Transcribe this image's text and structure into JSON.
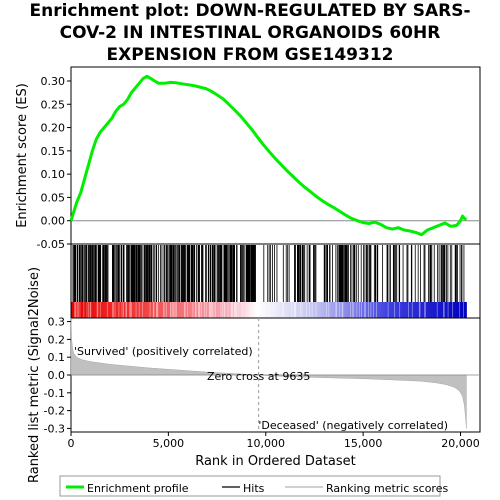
{
  "title_lines": [
    "Enrichment plot: DOWN-REGULATED BY SARS-",
    "COV-2 IN INTESTINAL ORGANOIDS 60HR",
    "EXPENSION FROM GSE149312"
  ],
  "colors": {
    "es_line": "#00ee00",
    "hits": "#000000",
    "metric_fill": "#c0c0c0",
    "positive_label": "#cc0000",
    "negative_label": "#0000cc",
    "zero_line": "#999999"
  },
  "chart_data": [
    {
      "type": "line",
      "name": "enrichment-profile",
      "ylabel": "Enrichment score (ES)",
      "ylim": [
        -0.05,
        0.33
      ],
      "yticks": [
        -0.05,
        0.0,
        0.05,
        0.1,
        0.15,
        0.2,
        0.25,
        0.3
      ],
      "ytick_labels": [
        "-0.05",
        "0.00",
        "0.05",
        "0.10",
        "0.15",
        "0.20",
        "0.25",
        "0.30"
      ],
      "xlim": [
        0,
        21000
      ],
      "x": [
        0,
        150,
        300,
        500,
        700,
        900,
        1100,
        1300,
        1500,
        1700,
        1900,
        2100,
        2300,
        2500,
        2700,
        2900,
        3100,
        3300,
        3500,
        3700,
        3900,
        4100,
        4300,
        4500,
        4800,
        5100,
        5400,
        5700,
        6000,
        6300,
        6600,
        6900,
        7200,
        7500,
        7800,
        8100,
        8400,
        8700,
        9000,
        9300,
        9600,
        9900,
        10200,
        10500,
        10800,
        11100,
        11400,
        11700,
        12000,
        12300,
        12600,
        12900,
        13200,
        13500,
        13800,
        14100,
        14400,
        14700,
        15000,
        15300,
        15600,
        15900,
        16200,
        16500,
        16800,
        17100,
        17400,
        17700,
        18000,
        18300,
        18600,
        18900,
        19200,
        19500,
        19800,
        20000,
        20100,
        20200,
        20300
      ],
      "y": [
        0.0,
        0.02,
        0.04,
        0.06,
        0.09,
        0.12,
        0.15,
        0.175,
        0.19,
        0.2,
        0.21,
        0.22,
        0.235,
        0.245,
        0.25,
        0.26,
        0.275,
        0.285,
        0.295,
        0.305,
        0.31,
        0.305,
        0.3,
        0.295,
        0.295,
        0.297,
        0.296,
        0.294,
        0.292,
        0.29,
        0.287,
        0.284,
        0.278,
        0.27,
        0.262,
        0.25,
        0.238,
        0.225,
        0.21,
        0.195,
        0.178,
        0.162,
        0.147,
        0.133,
        0.12,
        0.107,
        0.095,
        0.083,
        0.072,
        0.062,
        0.052,
        0.043,
        0.035,
        0.028,
        0.02,
        0.012,
        0.005,
        0.0,
        -0.004,
        -0.006,
        -0.003,
        -0.008,
        -0.015,
        -0.018,
        -0.015,
        -0.02,
        -0.022,
        -0.025,
        -0.03,
        -0.02,
        -0.015,
        -0.01,
        -0.005,
        -0.012,
        -0.01,
        0.0,
        0.01,
        0.005,
        0.002
      ]
    },
    {
      "type": "area",
      "name": "ranked-list-metric",
      "xlabel": "Rank in Ordered Dataset",
      "ylabel": "Ranked list metric (Signal2Noise)",
      "ylim": [
        -0.32,
        0.32
      ],
      "yticks": [
        -0.3,
        -0.2,
        -0.1,
        0.0,
        0.1,
        0.2,
        0.3
      ],
      "ytick_labels": [
        "-0.3",
        "-0.2",
        "-0.1",
        "0.0",
        "0.1",
        "0.2",
        "0.3"
      ],
      "xlim": [
        0,
        21000
      ],
      "xticks": [
        0,
        5000,
        10000,
        15000,
        20000
      ],
      "xtick_labels": [
        "0",
        "5,000",
        "10,000",
        "15,000",
        "20,000"
      ],
      "x": [
        0,
        30,
        80,
        150,
        300,
        600,
        1000,
        2000,
        3000,
        4000,
        5000,
        6000,
        7000,
        8000,
        9000,
        9635,
        10000,
        11000,
        12000,
        13000,
        14000,
        15000,
        16000,
        17000,
        18000,
        18800,
        19300,
        19700,
        19950,
        20100,
        20200,
        20250,
        20300
      ],
      "y": [
        0.32,
        0.2,
        0.15,
        0.12,
        0.1,
        0.085,
        0.075,
        0.06,
        0.05,
        0.04,
        0.032,
        0.024,
        0.016,
        0.01,
        0.004,
        0.0,
        -0.003,
        -0.008,
        -0.012,
        -0.015,
        -0.018,
        -0.021,
        -0.025,
        -0.03,
        -0.035,
        -0.045,
        -0.055,
        -0.07,
        -0.09,
        -0.12,
        -0.17,
        -0.23,
        -0.3
      ]
    }
  ],
  "hits": {
    "dense_regions": [
      [
        100,
        9500
      ],
      [
        9500,
        11500
      ],
      [
        11500,
        12600
      ],
      [
        13000,
        15800
      ],
      [
        16000,
        18000
      ],
      [
        18000,
        20200
      ]
    ],
    "density": [
      1.0,
      0.35,
      0.7,
      0.8,
      0.45,
      0.5
    ]
  },
  "labels": {
    "positive": "'Survived' (positively correlated)",
    "negative": "'Deceased' (negatively correlated)",
    "zero_cross": "Zero cross at 9635"
  },
  "zero_cross": 9635,
  "legend": [
    {
      "label": "Enrichment profile",
      "color": "#00ee00"
    },
    {
      "label": "Hits",
      "color": "#000000"
    },
    {
      "label": "Ranking metric scores",
      "color": "#c0c0c0"
    }
  ]
}
